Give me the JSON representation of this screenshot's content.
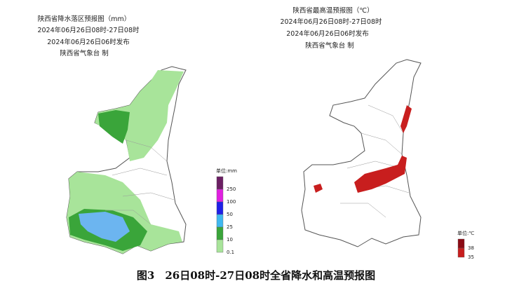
{
  "left_map": {
    "title": "陕西省降水落区预报图（mm）",
    "period": "2024年06月26日08时-27日08时",
    "issued": "2024年06月26日06时发布",
    "producer": "陕西省气象台 制",
    "legend": {
      "unit": "单位:mm",
      "items": [
        {
          "value": 250,
          "color": "#6b1f63"
        },
        {
          "value": 100,
          "color": "#e020e0"
        },
        {
          "value": 50,
          "color": "#2020e8"
        },
        {
          "value": 25,
          "color": "#40b8f0"
        },
        {
          "value": 10,
          "color": "#3aa53a"
        },
        {
          "value": 0.1,
          "color": "#a8e49a"
        }
      ]
    }
  },
  "right_map": {
    "title": "陕西省最高温预报图（℃）",
    "period": "2024年06月26日08时-27日08时",
    "issued": "2024年06月26日06时发布",
    "producer": "陕西省气象台 制",
    "legend": {
      "unit": "单位:℃",
      "items": [
        {
          "value": 38,
          "color": "#8b0a14"
        },
        {
          "value": 35,
          "color": "#c81e1e"
        }
      ]
    }
  },
  "caption": "图3　26日08时-27日08时全省降水和高温预报图"
}
